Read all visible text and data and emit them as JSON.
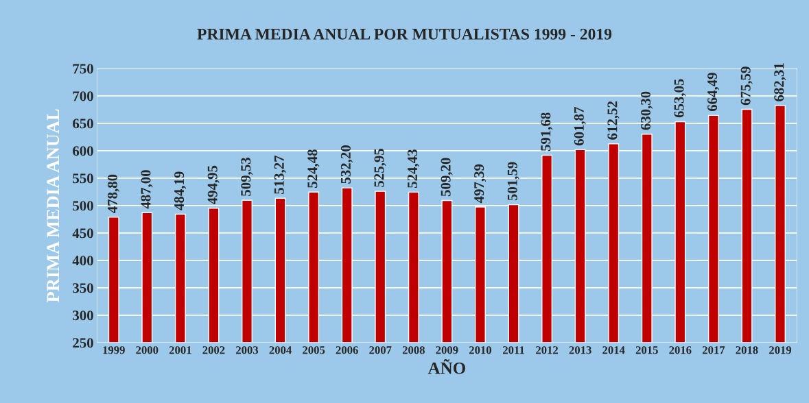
{
  "chart_data": {
    "type": "bar",
    "title": "PRIMA MEDIA ANUAL POR MUTUALISTAS 1999 - 2019",
    "xlabel": "AÑO",
    "ylabel": "PRIMA MEDIA ANUAL",
    "categories": [
      "1999",
      "2000",
      "2001",
      "2002",
      "2003",
      "2004",
      "2005",
      "2006",
      "2007",
      "2008",
      "2009",
      "2010",
      "2011",
      "2012",
      "2013",
      "2014",
      "2015",
      "2016",
      "2017",
      "2018",
      "2019"
    ],
    "values": [
      478.8,
      487.0,
      484.19,
      494.95,
      509.53,
      513.27,
      524.48,
      532.2,
      525.95,
      524.43,
      509.2,
      497.39,
      501.59,
      591.68,
      601.87,
      612.52,
      630.3,
      653.05,
      664.49,
      675.59,
      682.31
    ],
    "value_labels": [
      "478,80",
      "487,00",
      "484,19",
      "494,95",
      "509,53",
      "513,27",
      "524,48",
      "532,20",
      "525,95",
      "524,43",
      "509,20",
      "497,39",
      "501,59",
      "591,68",
      "601,87",
      "612,52",
      "630,30",
      "653,05",
      "664,49",
      "675,59",
      "682,31"
    ],
    "color": "#c00000",
    "ylim": [
      250,
      750
    ],
    "yticks": [
      250,
      300,
      350,
      400,
      450,
      500,
      550,
      600,
      650,
      700,
      750
    ],
    "grid": "y"
  }
}
